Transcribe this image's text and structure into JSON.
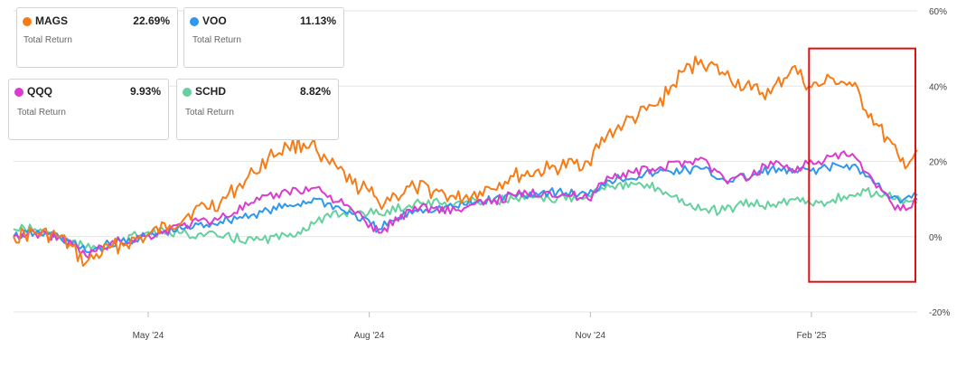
{
  "chart_data": {
    "type": "line",
    "title": "",
    "xlabel": "",
    "ylabel": "",
    "ylim": [
      -20,
      60
    ],
    "y_ticks": [
      -20,
      0,
      20,
      40,
      60
    ],
    "y_tick_labels": [
      "-20%",
      "0%",
      "20%",
      "40%",
      "60%"
    ],
    "x_range": [
      "2024-03-06",
      "2025-03-17"
    ],
    "x_ticks": [
      {
        "date": "2024-05-01",
        "label": "May '24"
      },
      {
        "date": "2024-08-01",
        "label": "Aug '24"
      },
      {
        "date": "2024-11-01",
        "label": "Nov '24"
      },
      {
        "date": "2025-02-01",
        "label": "Feb '25"
      }
    ],
    "grid": true,
    "legend_placement": "top-left",
    "highlight_box": {
      "x_start": "2025-01-31",
      "x_end": "2025-03-20",
      "y_top": 50,
      "y_bottom": -12,
      "color": "#dd1111"
    },
    "series": [
      {
        "name": "MAGS",
        "color": "#f57c17",
        "final_label": "22.69%",
        "sub_label": "Total Return",
        "x": [
          "2024-03-06",
          "2024-03-15",
          "2024-03-25",
          "2024-04-05",
          "2024-04-15",
          "2024-04-30",
          "2024-05-10",
          "2024-05-20",
          "2024-05-31",
          "2024-06-07",
          "2024-06-14",
          "2024-06-20",
          "2024-06-28",
          "2024-07-08",
          "2024-07-10",
          "2024-07-12",
          "2024-07-19",
          "2024-07-25",
          "2024-08-01",
          "2024-08-05",
          "2024-08-12",
          "2024-08-20",
          "2024-08-30",
          "2024-09-06",
          "2024-09-16",
          "2024-09-30",
          "2024-10-15",
          "2024-10-31",
          "2024-11-08",
          "2024-11-15",
          "2024-11-29",
          "2024-12-10",
          "2024-12-17",
          "2024-12-27",
          "2025-01-07",
          "2025-01-15",
          "2025-01-24",
          "2025-01-31",
          "2025-02-04",
          "2025-02-10",
          "2025-02-18",
          "2025-02-28",
          "2025-03-10",
          "2025-03-14",
          "2025-03-17"
        ],
        "y": [
          0,
          1,
          0,
          -7,
          -3,
          0,
          3,
          7,
          9,
          13,
          17,
          21,
          24,
          25,
          23,
          20,
          18,
          14,
          12,
          9,
          11,
          13,
          12,
          10,
          12,
          16,
          18,
          20,
          27,
          30,
          35,
          44,
          47,
          43,
          39,
          38,
          45,
          40,
          40,
          42,
          40,
          30,
          20,
          20,
          23
        ]
      },
      {
        "name": "VOO",
        "color": "#2f97ee",
        "final_label": "11.13%",
        "sub_label": "Total Return",
        "x": [
          "2024-03-06",
          "2024-03-15",
          "2024-03-25",
          "2024-04-05",
          "2024-04-15",
          "2024-04-30",
          "2024-05-15",
          "2024-05-31",
          "2024-06-14",
          "2024-06-28",
          "2024-07-10",
          "2024-07-25",
          "2024-08-05",
          "2024-08-20",
          "2024-09-06",
          "2024-09-30",
          "2024-10-15",
          "2024-10-31",
          "2024-11-08",
          "2024-11-29",
          "2024-12-17",
          "2024-12-27",
          "2025-01-07",
          "2025-01-15",
          "2025-01-24",
          "2025-02-04",
          "2025-02-18",
          "2025-02-28",
          "2025-03-10",
          "2025-03-17"
        ],
        "y": [
          0,
          1,
          0,
          -4,
          -2,
          0,
          2,
          4,
          6,
          8,
          10,
          6,
          2,
          7,
          8,
          11,
          12,
          11,
          15,
          17,
          18,
          15,
          16,
          18,
          17,
          18,
          19,
          14,
          9,
          11
        ]
      },
      {
        "name": "QQQ",
        "color": "#d93ccf",
        "final_label": "9.93%",
        "sub_label": "Total Return",
        "x": [
          "2024-03-06",
          "2024-03-15",
          "2024-03-25",
          "2024-04-05",
          "2024-04-15",
          "2024-04-30",
          "2024-05-15",
          "2024-05-31",
          "2024-06-14",
          "2024-06-28",
          "2024-07-10",
          "2024-07-25",
          "2024-08-05",
          "2024-08-20",
          "2024-09-06",
          "2024-09-30",
          "2024-10-15",
          "2024-10-31",
          "2024-11-08",
          "2024-11-29",
          "2024-12-17",
          "2024-12-27",
          "2025-01-07",
          "2025-01-15",
          "2025-01-24",
          "2025-02-04",
          "2025-02-18",
          "2025-02-28",
          "2025-03-10",
          "2025-03-17"
        ],
        "y": [
          0,
          1,
          0,
          -5,
          -2,
          0,
          3,
          5,
          9,
          12,
          13,
          7,
          1,
          8,
          7,
          11,
          12,
          10,
          16,
          18,
          21,
          15,
          16,
          20,
          18,
          20,
          22,
          13,
          7,
          10
        ]
      },
      {
        "name": "SCHD",
        "color": "#64d19e",
        "final_label": "8.82%",
        "sub_label": "Total Return",
        "x": [
          "2024-03-06",
          "2024-03-15",
          "2024-03-25",
          "2024-04-05",
          "2024-04-15",
          "2024-04-30",
          "2024-05-15",
          "2024-05-31",
          "2024-06-14",
          "2024-06-28",
          "2024-07-10",
          "2024-07-25",
          "2024-08-05",
          "2024-08-20",
          "2024-09-06",
          "2024-09-30",
          "2024-10-15",
          "2024-10-31",
          "2024-11-08",
          "2024-11-29",
          "2024-12-17",
          "2024-12-27",
          "2025-01-07",
          "2025-01-15",
          "2025-01-24",
          "2025-02-04",
          "2025-02-18",
          "2025-02-28",
          "2025-03-10",
          "2025-03-17"
        ],
        "y": [
          2,
          2,
          0,
          -3,
          -2,
          1,
          1,
          0,
          -1,
          0,
          4,
          7,
          6,
          9,
          9,
          10,
          10,
          11,
          14,
          13,
          7,
          7,
          9,
          8,
          10,
          9,
          11,
          12,
          10,
          9
        ]
      }
    ]
  }
}
